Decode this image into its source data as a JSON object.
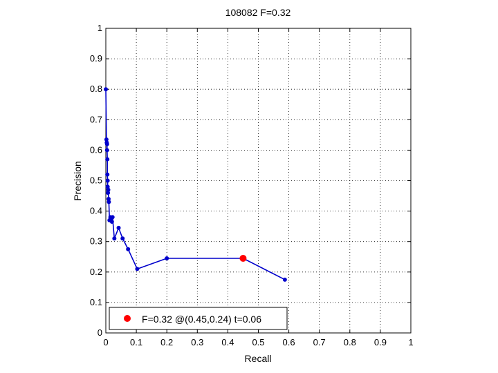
{
  "chart_data": {
    "type": "line",
    "title": "108082 F=0.32",
    "xlabel": "Recall",
    "ylabel": "Precision",
    "xlim": [
      0,
      1
    ],
    "ylim": [
      0,
      1
    ],
    "xticks": [
      "0",
      "0.1",
      "0.2",
      "0.3",
      "0.4",
      "0.5",
      "0.6",
      "0.7",
      "0.8",
      "0.9",
      "1"
    ],
    "yticks": [
      "0",
      "0.1",
      "0.2",
      "0.3",
      "0.4",
      "0.5",
      "0.6",
      "0.7",
      "0.8",
      "0.9",
      "1"
    ],
    "grid": true,
    "legend_position": "bottom-left",
    "series": [
      {
        "color": "#0000cc",
        "x": [
          0.0,
          0.002,
          0.003,
          0.004,
          0.004,
          0.005,
          0.005,
          0.006,
          0.006,
          0.007,
          0.008,
          0.009,
          0.01,
          0.012,
          0.015,
          0.018,
          0.02,
          0.022,
          0.028,
          0.042,
          0.055,
          0.073,
          0.103,
          0.2,
          0.45,
          0.587
        ],
        "y": [
          0.8,
          0.635,
          0.625,
          0.62,
          0.6,
          0.57,
          0.52,
          0.5,
          0.48,
          0.46,
          0.47,
          0.44,
          0.43,
          0.37,
          0.38,
          0.37,
          0.365,
          0.38,
          0.31,
          0.345,
          0.31,
          0.275,
          0.21,
          0.245,
          0.245,
          0.175
        ]
      }
    ],
    "best_point": {
      "x": 0.45,
      "y": 0.245,
      "color": "#ff0000"
    },
    "legend": {
      "text": "F=0.32 @(0.45,0.24) t=0.06",
      "marker_color": "#ff0000"
    }
  }
}
